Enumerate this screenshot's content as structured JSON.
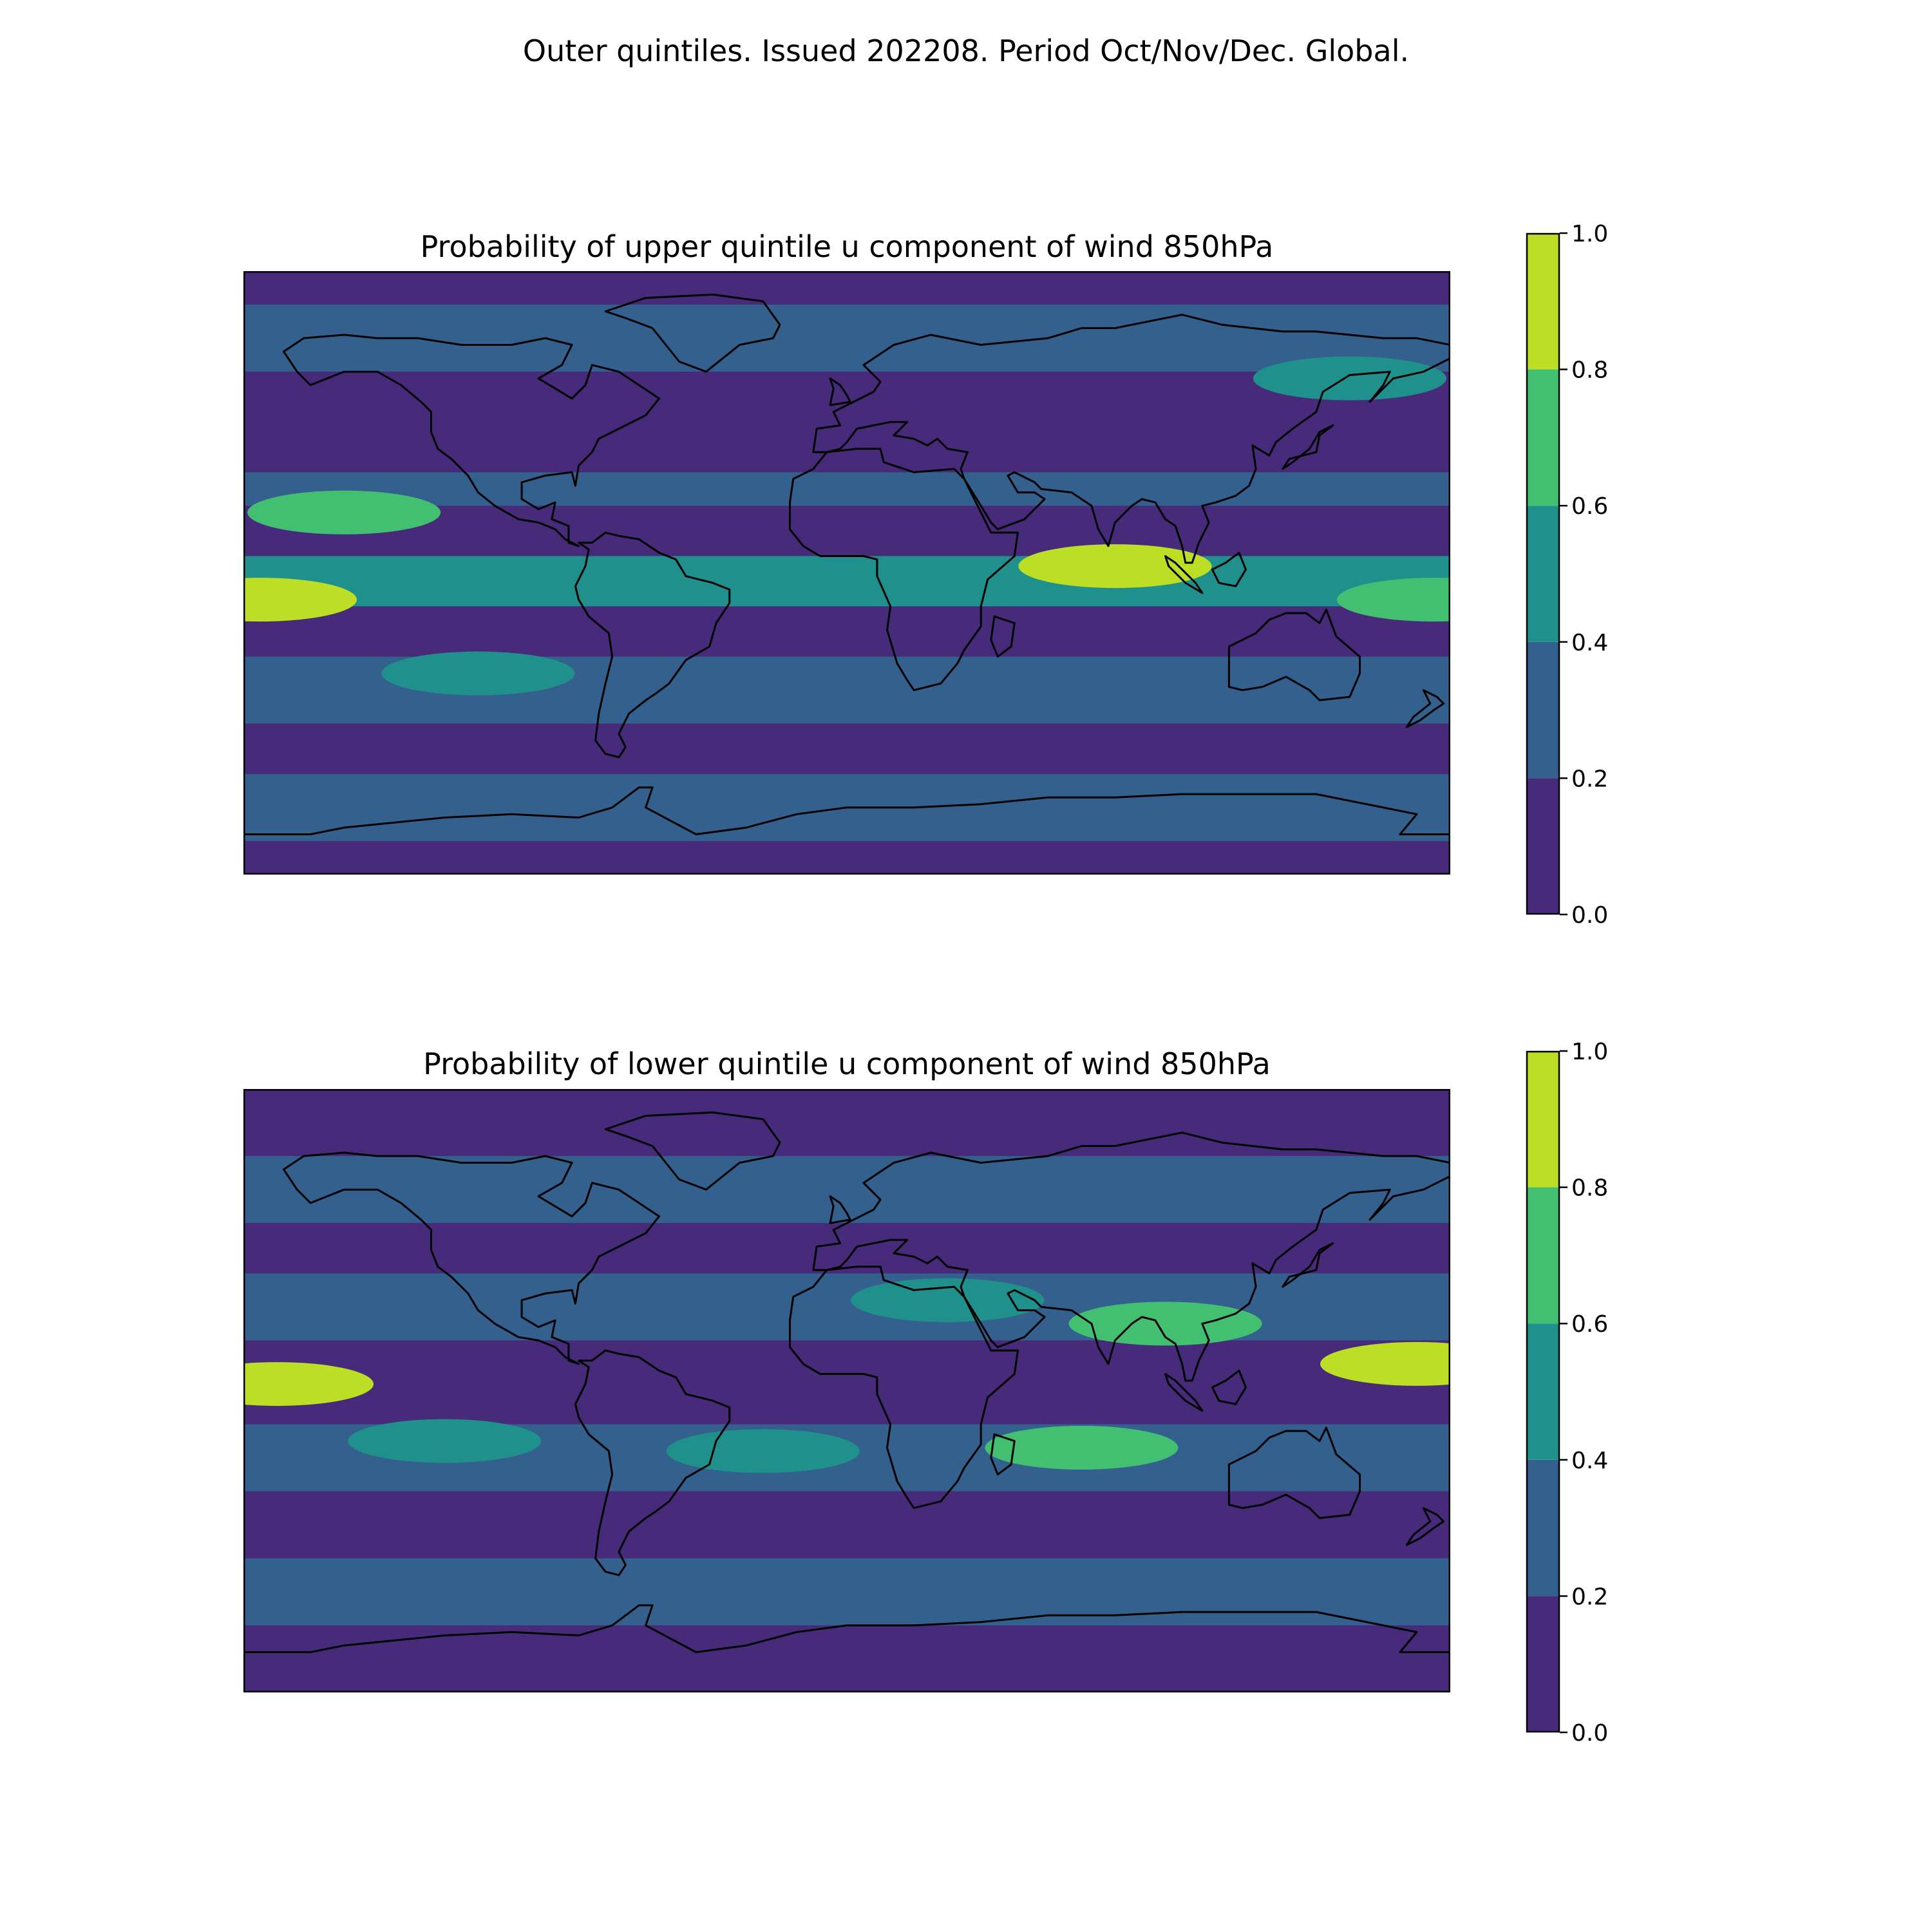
{
  "figure": {
    "suptitle": "Outer quintiles. Issued 202208. Period Oct/Nov/Dec. Global."
  },
  "colormap": {
    "name": "viridis",
    "levels": [
      0.0,
      0.2,
      0.4,
      0.6,
      0.8,
      1.0
    ],
    "tick_labels": [
      "0.0",
      "0.2",
      "0.4",
      "0.6",
      "0.8",
      "1.0"
    ],
    "colors": [
      "#472a7a",
      "#33608d",
      "#20908d",
      "#43bf71",
      "#bcde25"
    ]
  },
  "panels": [
    {
      "title": "Probability of upper quintile u component of wind 850hPa",
      "field": "upper quintile probability",
      "bands": [
        {
          "lat_range": [
            90,
            80
          ],
          "level": 0.1
        },
        {
          "lat_range": [
            80,
            60
          ],
          "level": 0.3
        },
        {
          "lat_range": [
            60,
            30
          ],
          "level": 0.1
        },
        {
          "lat_range": [
            30,
            20
          ],
          "level": 0.3
        },
        {
          "lat_range": [
            20,
            5
          ],
          "level": 0.1
        },
        {
          "lat_range": [
            5,
            -10
          ],
          "level": 0.5
        },
        {
          "lat_range": [
            -10,
            -25
          ],
          "level": 0.1
        },
        {
          "lat_range": [
            -25,
            -45
          ],
          "level": 0.3
        },
        {
          "lat_range": [
            -45,
            -60
          ],
          "level": 0.1
        },
        {
          "lat_range": [
            -60,
            -80
          ],
          "level": 0.3
        },
        {
          "lat_range": [
            -80,
            -90
          ],
          "level": 0.1
        }
      ],
      "features": [
        {
          "region": "Indian Ocean / Maritime Continent",
          "lon": 80,
          "lat": 2,
          "level": 0.9
        },
        {
          "region": "Western Pacific",
          "lon": 175,
          "lat": -8,
          "level": 0.7
        },
        {
          "region": "Eastern Pacific",
          "lon": -175,
          "lat": -8,
          "level": 0.9
        },
        {
          "region": "South Pacific",
          "lon": -110,
          "lat": -30,
          "level": 0.5
        },
        {
          "region": "Northeast Pacific",
          "lon": -150,
          "lat": 18,
          "level": 0.7
        },
        {
          "region": "North Pacific",
          "lon": 150,
          "lat": 58,
          "level": 0.5
        }
      ]
    },
    {
      "title": "Probability of lower quintile u component of wind 850hPa",
      "field": "lower quintile probability",
      "bands": [
        {
          "lat_range": [
            90,
            70
          ],
          "level": 0.1
        },
        {
          "lat_range": [
            70,
            50
          ],
          "level": 0.3
        },
        {
          "lat_range": [
            50,
            35
          ],
          "level": 0.1
        },
        {
          "lat_range": [
            35,
            15
          ],
          "level": 0.3
        },
        {
          "lat_range": [
            15,
            -10
          ],
          "level": 0.1
        },
        {
          "lat_range": [
            -10,
            -30
          ],
          "level": 0.3
        },
        {
          "lat_range": [
            -30,
            -50
          ],
          "level": 0.1
        },
        {
          "lat_range": [
            -50,
            -70
          ],
          "level": 0.3
        },
        {
          "lat_range": [
            -70,
            -90
          ],
          "level": 0.1
        }
      ],
      "features": [
        {
          "region": "Central Pacific",
          "lon": -170,
          "lat": 2,
          "level": 0.9
        },
        {
          "region": "Western Pacific",
          "lon": 170,
          "lat": 8,
          "level": 0.9
        },
        {
          "region": "North Africa / Middle East",
          "lon": 30,
          "lat": 27,
          "level": 0.5
        },
        {
          "region": "South Asia",
          "lon": 95,
          "lat": 20,
          "level": 0.7
        },
        {
          "region": "Southern Indian Ocean",
          "lon": 70,
          "lat": -17,
          "level": 0.7
        },
        {
          "region": "South Pacific",
          "lon": -120,
          "lat": -15,
          "level": 0.5
        },
        {
          "region": "South Atlantic",
          "lon": -25,
          "lat": -18,
          "level": 0.5
        }
      ]
    }
  ]
}
